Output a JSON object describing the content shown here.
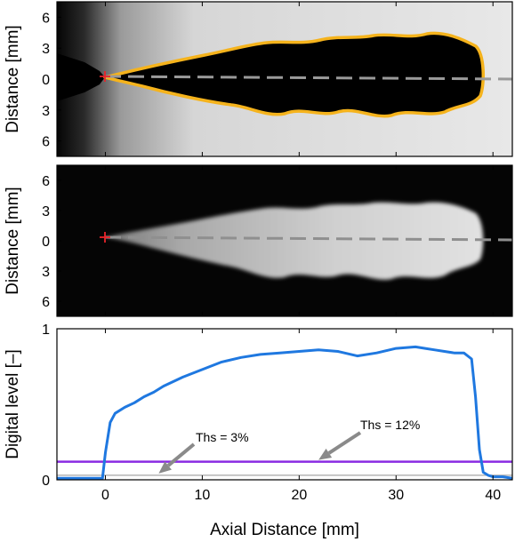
{
  "chart_data": [
    {
      "type": "image",
      "panel": "top",
      "ylabel": "Distance [mm]",
      "yticks": [
        "6",
        "3",
        "0",
        "3",
        "6"
      ],
      "ylim": [
        -7.5,
        7.5
      ],
      "xlim": [
        -5,
        42
      ],
      "grid": false,
      "annotations": [
        {
          "kind": "marker",
          "symbol": "+",
          "x": 0,
          "y": 0,
          "color": "#e8232a"
        }
      ],
      "colors": {
        "contour": "#f5b31c",
        "centerline": "#9a9a9a"
      }
    },
    {
      "type": "image",
      "panel": "middle",
      "ylabel": "Distance [mm]",
      "yticks": [
        "6",
        "3",
        "0",
        "3",
        "6"
      ],
      "ylim": [
        -7.5,
        7.5
      ],
      "xlim": [
        -5,
        42
      ],
      "grid": false,
      "annotations": [
        {
          "kind": "marker",
          "symbol": "+",
          "x": 0,
          "y": 0,
          "color": "#e8232a"
        }
      ],
      "colors": {
        "centerline": "#9a9a9a"
      }
    },
    {
      "type": "line",
      "panel": "bottom",
      "xlabel": "Axial Distance [mm]",
      "ylabel": "Digital level [–]",
      "xlim": [
        -5,
        42
      ],
      "ylim": [
        0,
        1
      ],
      "xticks": [
        "0",
        "10",
        "20",
        "30",
        "40"
      ],
      "yticks": [
        "0",
        "1"
      ],
      "grid": false,
      "series": [
        {
          "color": "#1f78e0",
          "x": [
            -5,
            -0.3,
            0,
            0.5,
            1,
            2,
            3,
            4,
            5,
            6,
            8,
            10,
            12,
            14,
            16,
            18,
            20,
            22,
            24,
            26,
            28,
            30,
            32,
            33,
            34,
            35,
            36,
            37,
            37.8,
            38.2,
            38.6,
            39,
            39.5,
            40,
            41,
            42
          ],
          "y": [
            0.01,
            0.01,
            0.18,
            0.38,
            0.44,
            0.48,
            0.51,
            0.55,
            0.58,
            0.62,
            0.68,
            0.73,
            0.78,
            0.81,
            0.83,
            0.84,
            0.85,
            0.86,
            0.85,
            0.82,
            0.84,
            0.87,
            0.88,
            0.87,
            0.86,
            0.85,
            0.84,
            0.84,
            0.8,
            0.55,
            0.2,
            0.05,
            0.03,
            0.02,
            0.02,
            0.01
          ]
        }
      ],
      "thresholds": [
        {
          "label": "Ths = 3%",
          "value": 0.03,
          "color": "#b5b5b5",
          "arrow_x": 5.5
        },
        {
          "label": "Ths = 12%",
          "value": 0.12,
          "color": "#8a2be2",
          "arrow_x": 22
        }
      ]
    }
  ]
}
